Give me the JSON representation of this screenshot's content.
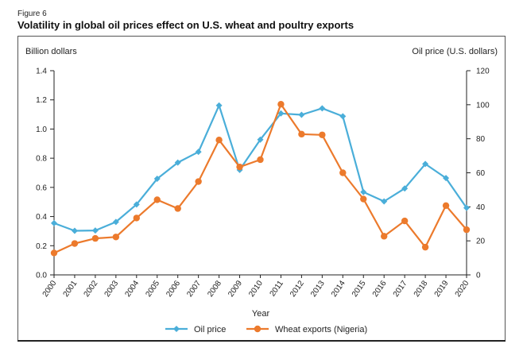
{
  "figure": {
    "label": "Figure 6",
    "title": "Volatility in global oil prices effect on U.S. wheat and poultry exports"
  },
  "chart_data": {
    "type": "line",
    "xlabel": "Year",
    "ylabel_left": "Billion dollars",
    "ylabel_right": "Oil price (U.S. dollars)",
    "ylim_left": [
      0,
      1.4
    ],
    "ylim_right": [
      0,
      120
    ],
    "yticks_left": [
      "0.0",
      "0.2",
      "0.4",
      "0.6",
      "0.8",
      "1.0",
      "1.2",
      "1.4"
    ],
    "yticks_right": [
      "0",
      "20",
      "40",
      "60",
      "80",
      "100",
      "120"
    ],
    "grid": false,
    "legend_position": "bottom-center",
    "categories": [
      "2000",
      "2001",
      "2002",
      "2003",
      "2004",
      "2005",
      "2006",
      "2007",
      "2008",
      "2009",
      "2010",
      "2011",
      "2012",
      "2013",
      "2014",
      "2015",
      "2016",
      "2017",
      "2018",
      "2019",
      "2020"
    ],
    "series": [
      {
        "name": "Oil price",
        "axis": "right",
        "color": "#4aaed9",
        "marker": "diamond",
        "values": [
          30.4,
          25.9,
          26.1,
          31.1,
          41.4,
          56.5,
          66.0,
          72.3,
          99.6,
          61.7,
          79.5,
          94.9,
          94.1,
          97.9,
          93.2,
          48.7,
          43.2,
          50.8,
          65.2,
          56.9,
          39.4
        ]
      },
      {
        "name": "Wheat exports (Nigeria)",
        "axis": "left",
        "color": "#ec7a2c",
        "marker": "circle",
        "values": [
          0.15,
          0.215,
          0.25,
          0.26,
          0.39,
          0.515,
          0.455,
          0.64,
          0.925,
          0.74,
          0.79,
          1.17,
          0.965,
          0.96,
          0.7,
          0.52,
          0.265,
          0.37,
          0.19,
          0.475,
          0.31
        ]
      }
    ]
  }
}
